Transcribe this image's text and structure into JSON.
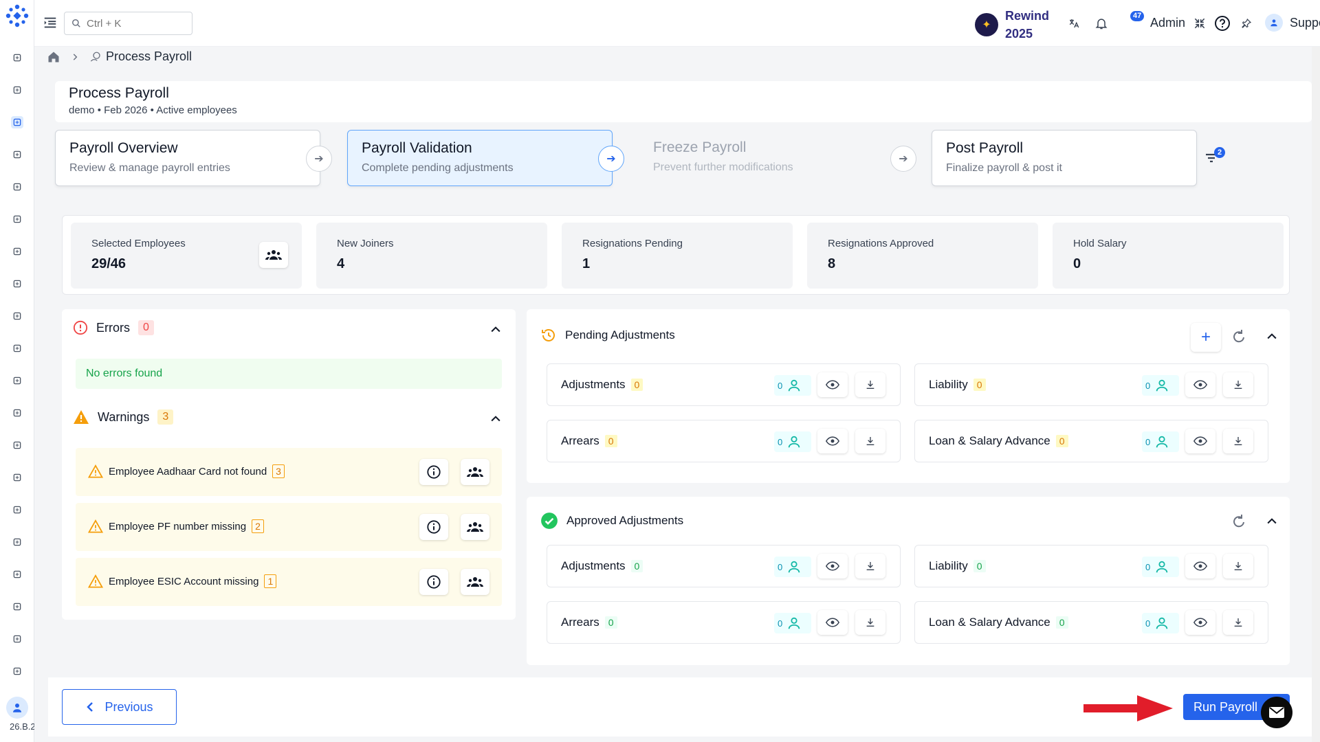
{
  "topbar": {
    "search_placeholder": "Ctrl + K",
    "rewind_line1": "Rewind",
    "rewind_line2": "2025",
    "notification_count": "47",
    "admin_label": "Admin",
    "support_label": "Support"
  },
  "sidebar": {
    "version": "26.B.2",
    "icons": [
      "dashboard-icon",
      "calendar-edit-icon",
      "calendar-icon",
      "hand-coin-icon",
      "clock-icon",
      "bag-icon",
      "coin-hand-icon",
      "payroll-icon",
      "report-icon",
      "wallet-icon",
      "chart-icon",
      "devices-icon",
      "user-circle-icon",
      "gavel-icon",
      "growth-icon",
      "cash-icon",
      "speed-icon",
      "transfer-icon",
      "id-card-icon",
      "clipboard-icon"
    ]
  },
  "breadcrumb": {
    "current": "Process Payroll"
  },
  "header": {
    "title": "Process Payroll",
    "subtitle": "demo • Feb 2026 • Active employees"
  },
  "steps": [
    {
      "title": "Payroll Overview",
      "desc": "Review & manage payroll entries"
    },
    {
      "title": "Payroll Validation",
      "desc": "Complete pending adjustments"
    },
    {
      "title": "Freeze Payroll",
      "desc": "Prevent further modifications"
    },
    {
      "title": "Post Payroll",
      "desc": "Finalize payroll & post it"
    }
  ],
  "filter_badge": "2",
  "stats": [
    {
      "label": "Selected Employees",
      "value": "29/46"
    },
    {
      "label": "New Joiners",
      "value": "4"
    },
    {
      "label": "Resignations Pending",
      "value": "1"
    },
    {
      "label": "Resignations Approved",
      "value": "8"
    },
    {
      "label": "Hold Salary",
      "value": "0"
    }
  ],
  "errors": {
    "label": "Errors",
    "count": "0",
    "empty_text": "No errors found"
  },
  "warnings": {
    "label": "Warnings",
    "count": "3",
    "items": [
      {
        "text": "Employee Aadhaar Card not found",
        "count": "3"
      },
      {
        "text": "Employee PF number missing",
        "count": "2"
      },
      {
        "text": "Employee ESIC Account missing",
        "count": "1"
      }
    ]
  },
  "pending": {
    "title": "Pending Adjustments",
    "cards": [
      {
        "label": "Adjustments",
        "count": "0",
        "employees": "0"
      },
      {
        "label": "Liability",
        "count": "0",
        "employees": "0"
      },
      {
        "label": "Arrears",
        "count": "0",
        "employees": "0"
      },
      {
        "label": "Loan & Salary Advance",
        "count": "0",
        "employees": "0"
      }
    ]
  },
  "approved": {
    "title": "Approved Adjustments",
    "cards": [
      {
        "label": "Adjustments",
        "count": "0",
        "employees": "0"
      },
      {
        "label": "Liability",
        "count": "0",
        "employees": "0"
      },
      {
        "label": "Arrears",
        "count": "0",
        "employees": "0"
      },
      {
        "label": "Loan & Salary Advance",
        "count": "0",
        "employees": "0"
      }
    ]
  },
  "footer": {
    "previous_label": "Previous",
    "run_label": "Run Payroll"
  },
  "colors": {
    "accent": "#2563eb",
    "error": "#ef4444",
    "warning": "#f59e0b",
    "success": "#22c55e",
    "teal": "#14b8a6",
    "annotation_arrow": "#e11d2a"
  }
}
